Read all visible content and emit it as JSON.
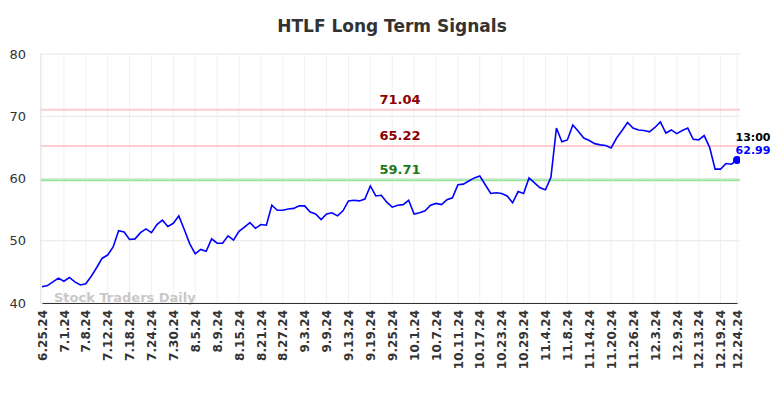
{
  "chart_data": {
    "type": "line",
    "title": "HTLF Long Term Signals",
    "categories": [
      "6.25.24",
      null,
      null,
      null,
      "7.1.24",
      null,
      null,
      null,
      "7.8.24",
      null,
      null,
      null,
      "7.12.24",
      null,
      null,
      null,
      "7.18.24",
      null,
      null,
      null,
      "7.24.24",
      null,
      null,
      null,
      "7.30.24",
      null,
      null,
      null,
      "8.5.24",
      null,
      null,
      null,
      "8.9.24",
      null,
      null,
      null,
      "8.15.24",
      null,
      null,
      null,
      "8.21.24",
      null,
      null,
      null,
      "8.27.24",
      null,
      null,
      null,
      "9.3.24",
      null,
      null,
      null,
      "9.9.24",
      null,
      null,
      null,
      "9.13.24",
      null,
      null,
      null,
      "9.19.24",
      null,
      null,
      null,
      "9.25.24",
      null,
      null,
      null,
      "10.1.24",
      null,
      null,
      null,
      "10.7.24",
      null,
      null,
      null,
      "10.11.24",
      null,
      null,
      null,
      "10.17.24",
      null,
      null,
      null,
      "10.23.24",
      null,
      null,
      null,
      "10.29.24",
      null,
      null,
      null,
      "11.4.24",
      null,
      null,
      null,
      "11.8.24",
      null,
      null,
      null,
      "11.14.24",
      null,
      null,
      null,
      "11.20.24",
      null,
      null,
      null,
      "11.26.24",
      null,
      null,
      null,
      "12.3.24",
      null,
      null,
      null,
      "12.9.24",
      null,
      null,
      null,
      "12.13.24",
      null,
      null,
      null,
      "12.19.24",
      null,
      null,
      "12.24.24"
    ],
    "values": [
      42.6,
      42.8,
      43.4,
      44.0,
      43.5,
      44.1,
      43.4,
      42.9,
      43.1,
      44.3,
      45.7,
      47.2,
      47.7,
      49.0,
      51.6,
      51.4,
      50.2,
      50.3,
      51.3,
      51.9,
      51.3,
      52.6,
      53.3,
      52.3,
      52.8,
      54.0,
      51.8,
      49.5,
      47.9,
      48.6,
      48.3,
      50.3,
      49.6,
      49.6,
      50.8,
      50.1,
      51.5,
      52.2,
      52.9,
      52.0,
      52.6,
      52.5,
      55.7,
      54.9,
      54.9,
      55.1,
      55.2,
      55.6,
      55.6,
      54.6,
      54.3,
      53.4,
      54.3,
      54.5,
      54.0,
      54.8,
      56.4,
      56.5,
      56.4,
      56.7,
      58.8,
      57.2,
      57.3,
      56.2,
      55.4,
      55.7,
      55.8,
      56.5,
      54.3,
      54.5,
      54.8,
      55.7,
      56.0,
      55.8,
      56.6,
      56.9,
      59.0,
      59.1,
      59.6,
      60.1,
      60.4,
      59.0,
      57.6,
      57.7,
      57.6,
      57.2,
      56.1,
      57.9,
      57.6,
      60.1,
      59.3,
      58.5,
      58.2,
      60.2,
      68.1,
      65.9,
      66.2,
      68.6,
      67.6,
      66.5,
      66.1,
      65.6,
      65.4,
      65.3,
      64.9,
      66.5,
      67.7,
      69.0,
      68.1,
      67.8,
      67.7,
      67.5,
      68.2,
      69.1,
      67.3,
      67.8,
      67.2,
      67.7,
      68.1,
      66.3,
      66.2,
      66.9,
      65.0,
      61.5,
      61.5,
      62.4,
      62.3,
      62.99
    ],
    "color": "#0000ff",
    "ylim": [
      40,
      80
    ],
    "yticks": [
      40,
      50,
      60,
      70,
      80
    ],
    "grid": true,
    "reference_lines": [
      {
        "value": 71.04,
        "color": "#ffcccc"
      },
      {
        "value": 65.22,
        "color": "#ffcccc"
      },
      {
        "value": 59.71,
        "color": "#99e699"
      }
    ],
    "last_label": "13:00",
    "watermark": "Stock Traders Daily"
  }
}
